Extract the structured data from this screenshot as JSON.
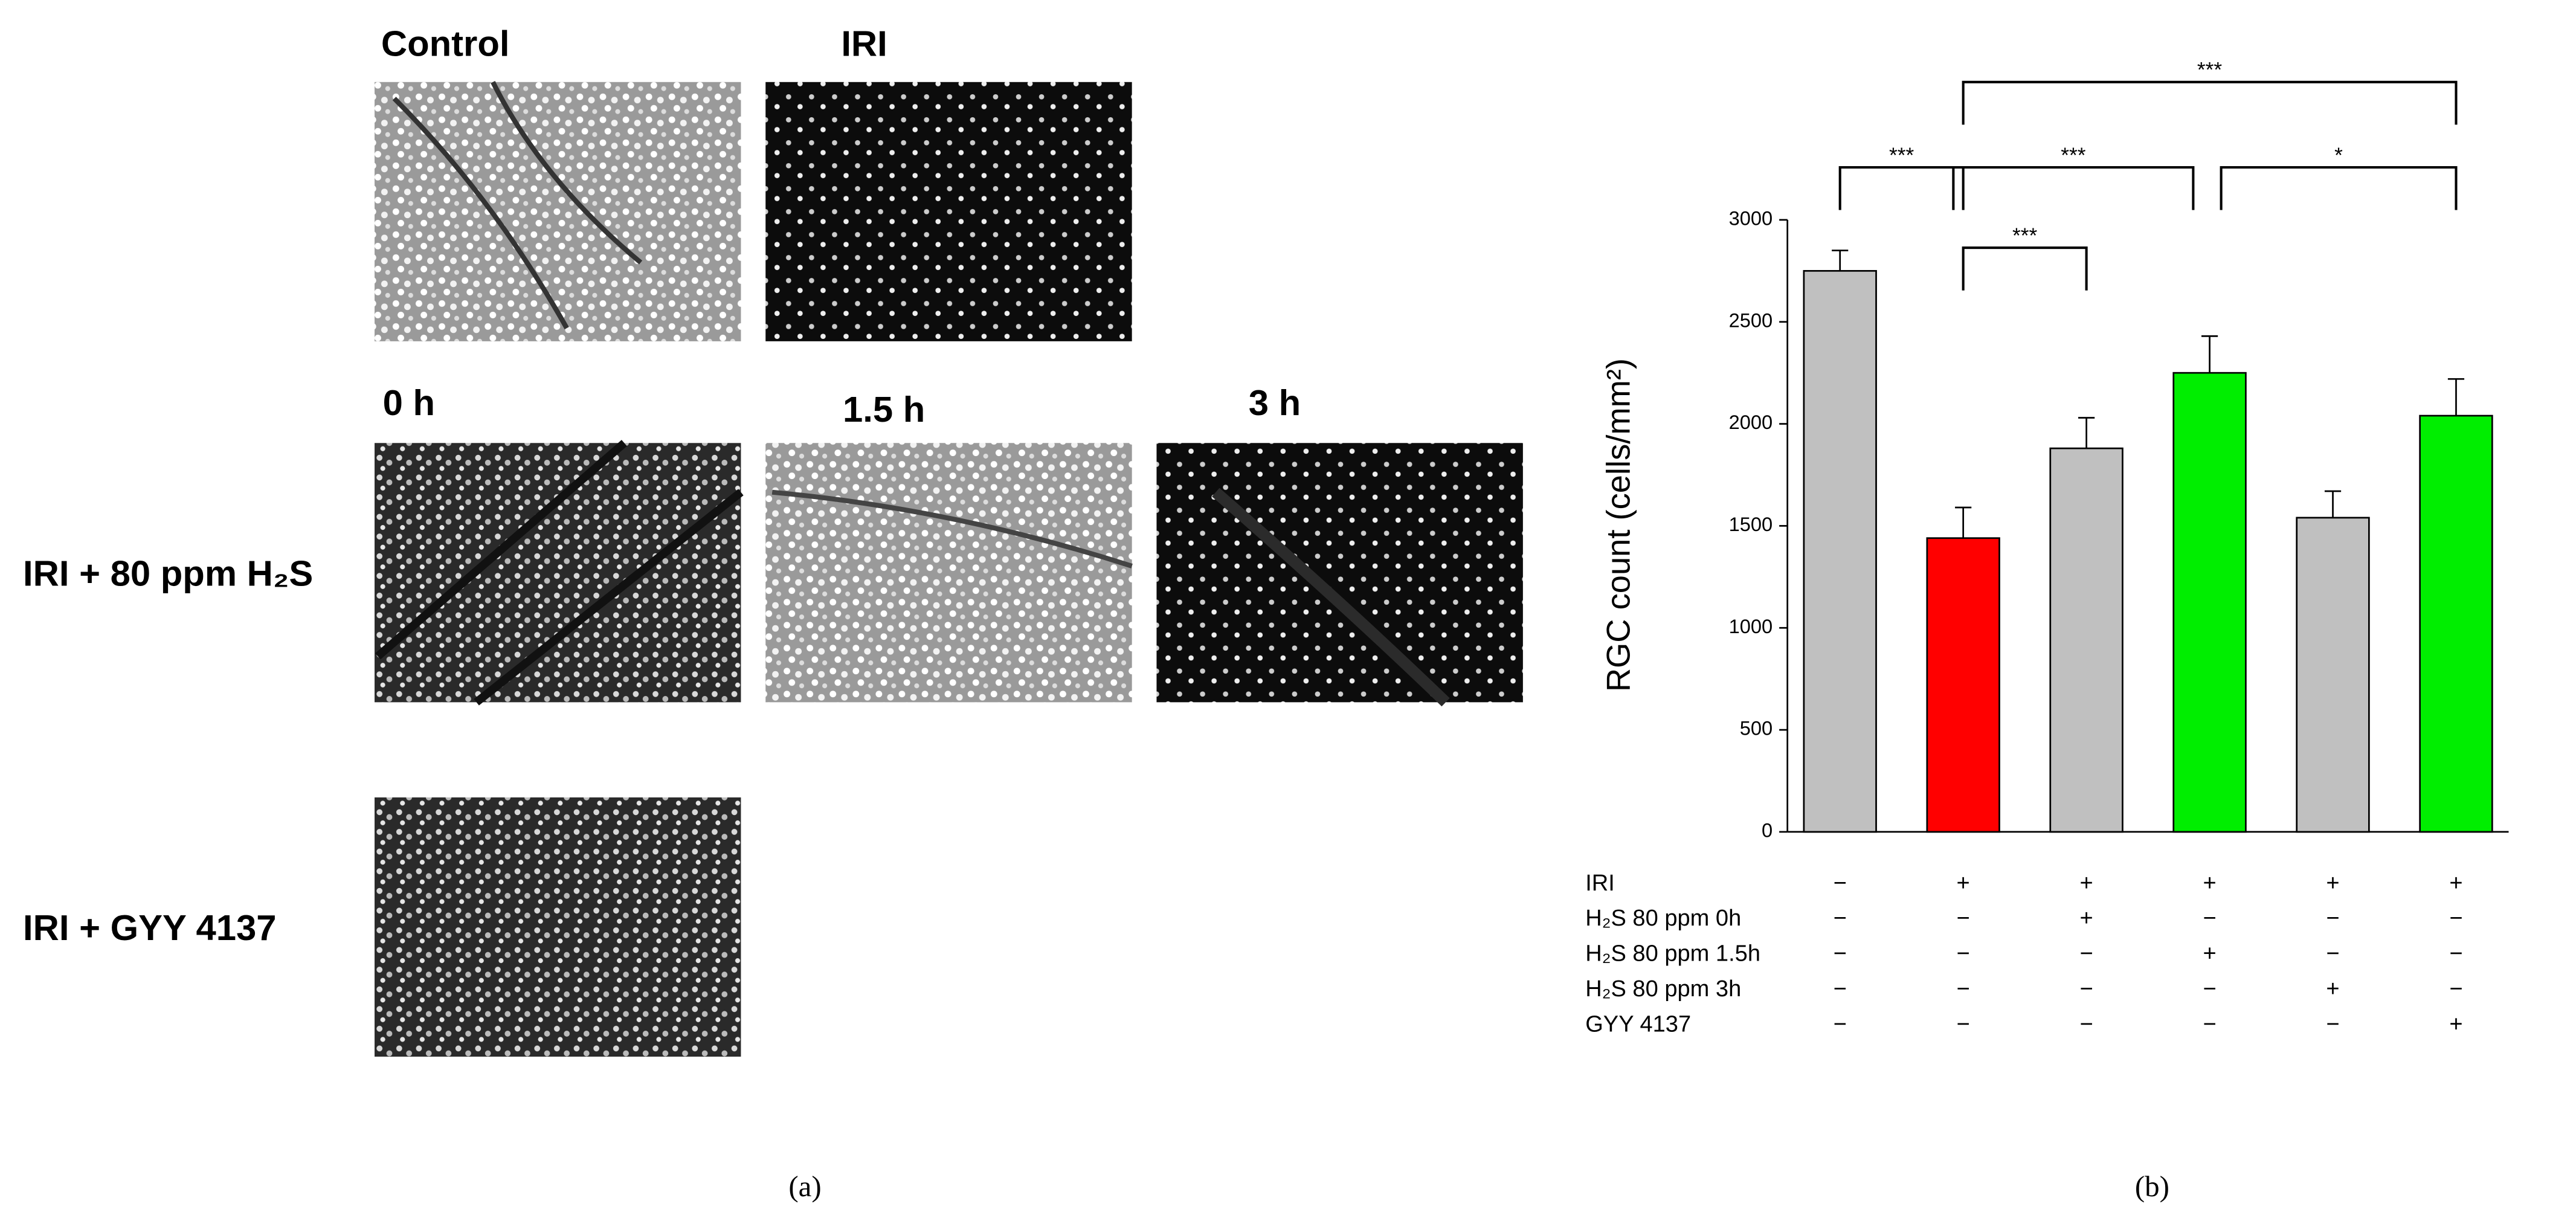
{
  "panel_a": {
    "column_labels": [
      "Control",
      "IRI",
      "0 h",
      "1.5 h",
      "3 h"
    ],
    "row_labels": [
      "IRI + 80 ppm H₂S",
      "IRI + GYY 4137"
    ],
    "caption": "(a)"
  },
  "chart_data": {
    "type": "bar",
    "y_label": "RGC count (cells/mm²)",
    "values": [
      2750,
      1440,
      1880,
      2250,
      1540,
      2040
    ],
    "errors": [
      100,
      150,
      150,
      180,
      130,
      180
    ],
    "colors": [
      "#c0c0c0",
      "#ff0000",
      "#c0c0c0",
      "#00ee00",
      "#c0c0c0",
      "#00ee00"
    ],
    "ylim": [
      0,
      3000
    ],
    "yticks": [
      0,
      500,
      1000,
      1500,
      2000,
      2500,
      3000
    ],
    "treatments": [
      {
        "label": "IRI",
        "cells": [
          "−",
          "+",
          "+",
          "+",
          "+",
          "+"
        ]
      },
      {
        "label": "H₂S 80 ppm 0h",
        "cells": [
          "−",
          "−",
          "+",
          "−",
          "−",
          "−"
        ]
      },
      {
        "label": "H₂S 80 ppm 1.5h",
        "cells": [
          "−",
          "−",
          "−",
          "+",
          "−",
          "−"
        ]
      },
      {
        "label": "H₂S 80 ppm 3h",
        "cells": [
          "−",
          "−",
          "−",
          "−",
          "+",
          "−"
        ]
      },
      {
        "label": "GYY 4137",
        "cells": [
          "−",
          "−",
          "−",
          "−",
          "−",
          "+"
        ]
      }
    ],
    "significance": [
      {
        "from": 0,
        "to": 1,
        "label": "***"
      },
      {
        "from": 1,
        "to": 2,
        "label": "***"
      },
      {
        "from": 1,
        "to": 3,
        "label": "***"
      },
      {
        "from": 3,
        "to": 5,
        "label": "*"
      },
      {
        "from": 1,
        "to": 5,
        "label": "***"
      }
    ],
    "caption": "(b)"
  }
}
